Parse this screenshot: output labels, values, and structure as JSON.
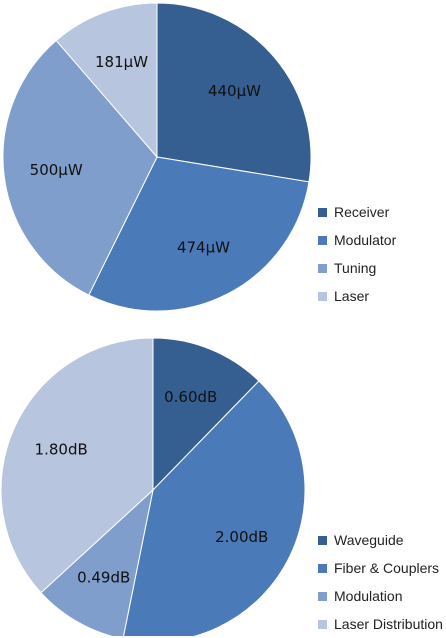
{
  "chart_data": [
    {
      "type": "pie",
      "unit": "μW",
      "categories": [
        "Receiver",
        "Modulator",
        "Tuning",
        "Laser"
      ],
      "values": [
        440,
        474,
        500,
        181
      ],
      "data_labels": [
        "440μW",
        "474μW",
        "500μW",
        "181μW"
      ],
      "colors": [
        "#365f91",
        "#4a7ab8",
        "#7f9ecb",
        "#b7c5df"
      ],
      "start_angle": "12 o'clock",
      "direction": "clockwise",
      "legend_position": "right-bottom"
    },
    {
      "type": "pie",
      "unit": "dB",
      "categories": [
        "Waveguide",
        "Fiber & Couplers",
        "Modulation",
        "Laser Distribution"
      ],
      "values": [
        0.6,
        2.0,
        0.49,
        1.8
      ],
      "data_labels": [
        "0.60dB",
        "2.00dB",
        "0.49dB",
        "1.80dB"
      ],
      "colors": [
        "#365f91",
        "#4a7ab8",
        "#7f9ecb",
        "#b7c5df"
      ],
      "start_angle": "12 o'clock",
      "direction": "clockwise",
      "legend_position": "right-bottom"
    }
  ]
}
